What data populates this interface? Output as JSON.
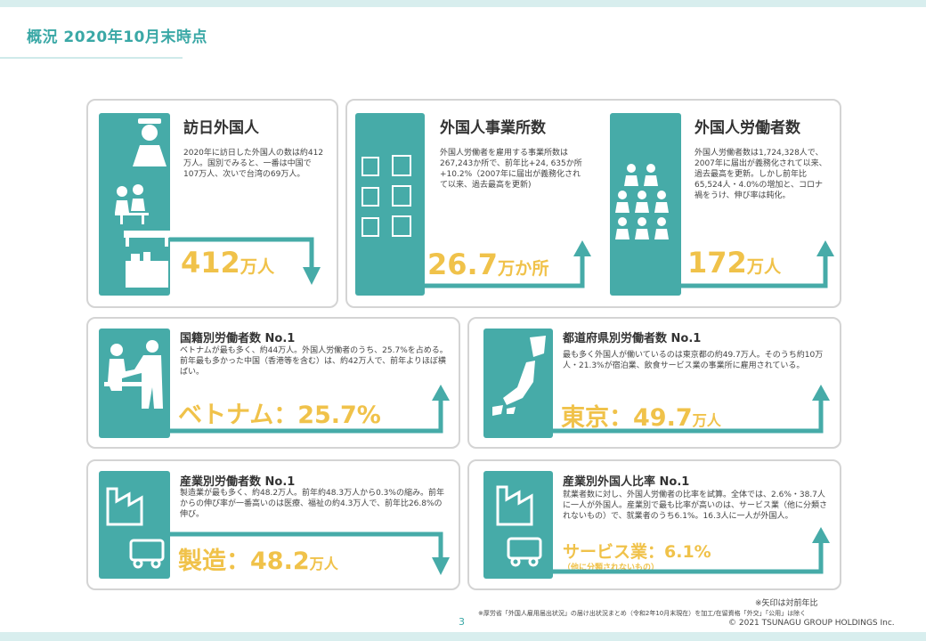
{
  "page": {
    "title": "概況 2020年10月末時点",
    "page_number": "3",
    "footnote_arrow": "※矢印は対前年比",
    "footnote_source": "※厚労省「外国人雇用届出状況」の届け出状況まとめ（令和2年10月末現在）を加工/在留資格「外交」「公用」は除く",
    "copyright": "© 2021 TSUNAGU GROUP HOLDINGS Inc."
  },
  "visitors": {
    "title": "訪日外国人",
    "desc": "2020年に訪日した外国人の数は約412万人。国別でみると、一番は中国で107万人、次いで台湾の69万人。",
    "value": "412",
    "unit": "万人",
    "trend": "down"
  },
  "offices": {
    "title": "外国人事業所数",
    "desc": "外国人労働者を雇用する事業所数は267,243か所で、前年比+24, 635か所+10.2%（2007年に届出が義務化されて以来、過去最高を更新)",
    "value": "26.7",
    "unit": "万か所",
    "trend": "up"
  },
  "workers": {
    "title": "外国人労働者数",
    "desc": "外国人労働者数は1,724,328人で、 2007年に届出が義務化されて以来、過去最高を更新。しかし前年比65,524人・4.0%の増加と、コロナ禍をうけ、伸び率は鈍化。",
    "value": "172",
    "unit": "万人",
    "trend": "up"
  },
  "nationality": {
    "title": "国籍別労働者数 No.1",
    "desc": "ベトナムが最も多く、約44万人。外国人労働者のうち、25.7%を占める。前年最も多かった中国（香港等を含む）は、約42万人で、前年よりほぼ横ばい。",
    "value": "ベトナム：25.7%",
    "trend": "up"
  },
  "prefecture": {
    "title": "都道府県別労働者数 No.1",
    "desc": "最も多く外国人が働いているのは東京都の約49.7万人。そのうち約10万人・21.3%が宿泊業、飲食サービス業の事業所に雇用されている。",
    "value": "東京：49.7",
    "unit": "万人",
    "trend": "up"
  },
  "industry": {
    "title": "産業別労働者数 No.1",
    "desc": "製造業が最も多く、約48.2万人。前年約48.3万人から0.3%の縮み。前年からの伸び率が一番高いのは医療、福祉の約4.3万人で、前年比26.8%の伸び。",
    "value": "製造：48.2",
    "unit": "万人",
    "trend": "down"
  },
  "ratio": {
    "title": "産業別外国人比率 No.1",
    "desc": "就業者数に対し、外国人労働者の比率を試算。全体では、2.6%・38.7人に一人が外国人。産業別で最も比率が高いのは、サービス業（他に分類されないもの）で、就業者のうち6.1%。16.3人に一人が外国人。",
    "value": "サービス業：6.1%",
    "sub": "（他に分類されないもの）",
    "trend": "up"
  },
  "colors": {
    "teal": "#46aba8",
    "gold": "#f0c24a",
    "title": "#3aa8a6"
  }
}
